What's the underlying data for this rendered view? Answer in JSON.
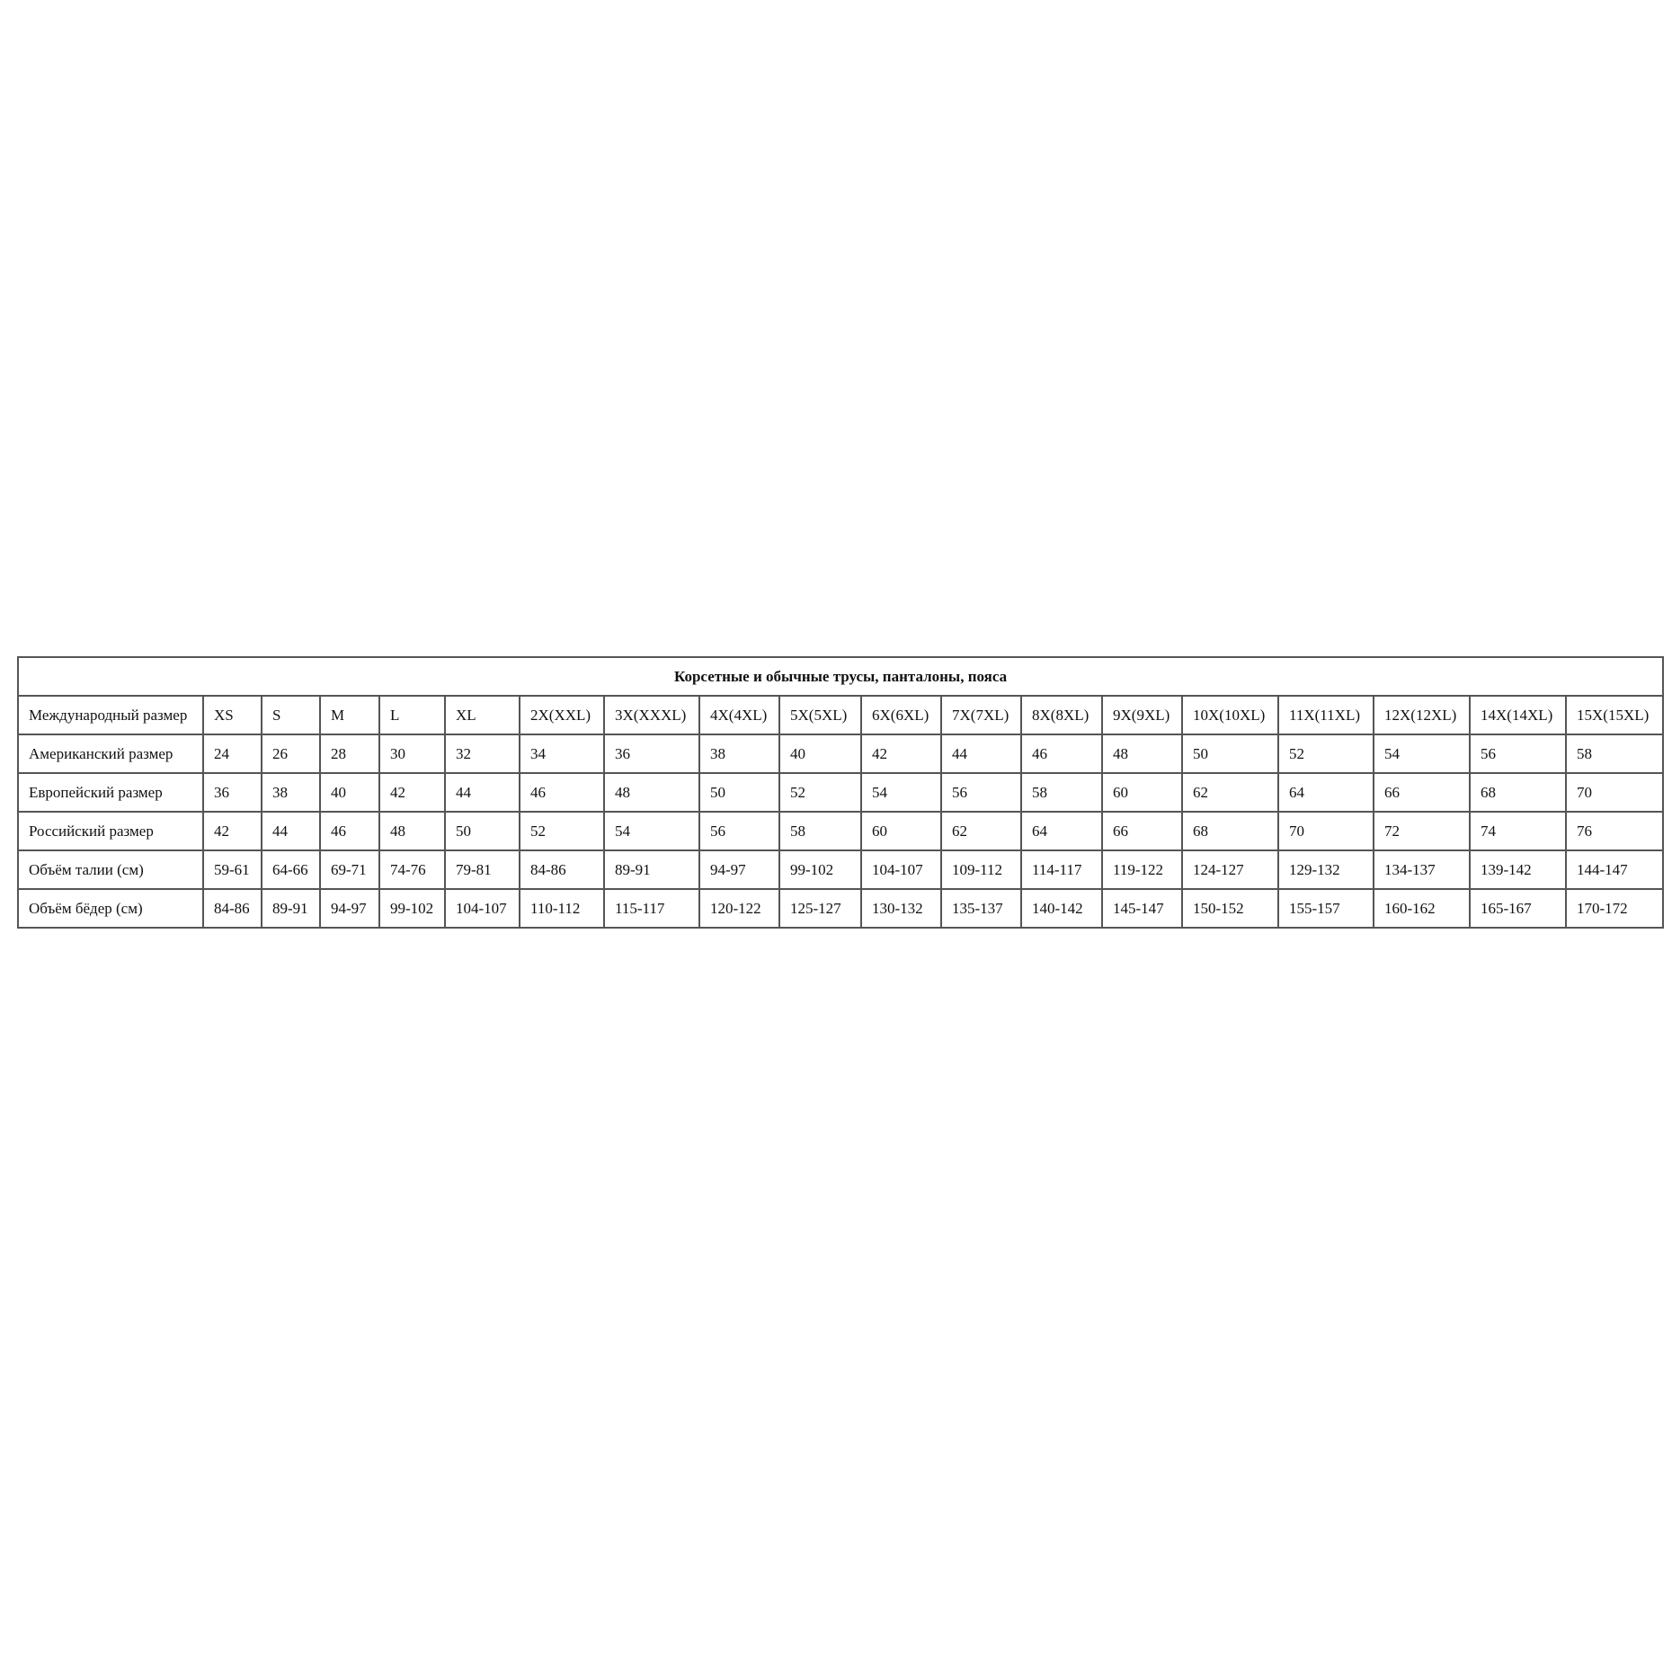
{
  "table": {
    "title": "Корсетные и обычные трусы, панталоны, пояса",
    "rows": [
      {
        "label": "Международный размер",
        "cells": [
          "XS",
          "S",
          "M",
          "L",
          "XL",
          "2X(XXL)",
          "3X(XXXL)",
          "4X(4XL)",
          "5X(5XL)",
          "6X(6XL)",
          "7X(7XL)",
          "8X(8XL)",
          "9X(9XL)",
          "10X(10XL)",
          "11X(11XL)",
          "12X(12XL)",
          "14X(14XL)",
          "15X(15XL)"
        ]
      },
      {
        "label": "Американский размер",
        "cells": [
          "24",
          "26",
          "28",
          "30",
          "32",
          "34",
          "36",
          "38",
          "40",
          "42",
          "44",
          "46",
          "48",
          "50",
          "52",
          "54",
          "56",
          "58"
        ]
      },
      {
        "label": "Европейский размер",
        "cells": [
          "36",
          "38",
          "40",
          "42",
          "44",
          "46",
          "48",
          "50",
          "52",
          "54",
          "56",
          "58",
          "60",
          "62",
          "64",
          "66",
          "68",
          "70"
        ]
      },
      {
        "label": "Российский размер",
        "cells": [
          "42",
          "44",
          "46",
          "48",
          "50",
          "52",
          "54",
          "56",
          "58",
          "60",
          "62",
          "64",
          "66",
          "68",
          "70",
          "72",
          "74",
          "76"
        ]
      },
      {
        "label": "Объём талии (см)",
        "cells": [
          "59-61",
          "64-66",
          "69-71",
          "74-76",
          "79-81",
          "84-86",
          "89-91",
          "94-97",
          "99-102",
          "104-107",
          "109-112",
          "114-117",
          "119-122",
          "124-127",
          "129-132",
          "134-137",
          "139-142",
          "144-147"
        ]
      },
      {
        "label": "Объём бёдер (см)",
        "cells": [
          "84-86",
          "89-91",
          "94-97",
          "99-102",
          "104-107",
          "110-112",
          "115-117",
          "120-122",
          "125-127",
          "130-132",
          "135-137",
          "140-142",
          "145-147",
          "150-152",
          "155-157",
          "160-162",
          "165-167",
          "170-172"
        ]
      }
    ]
  }
}
